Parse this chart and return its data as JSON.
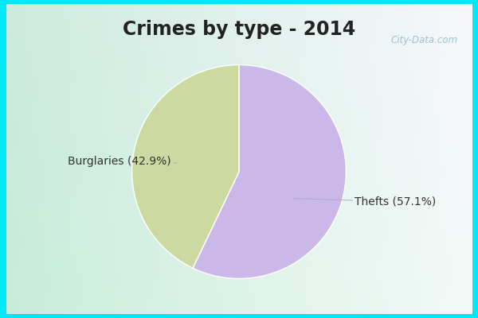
{
  "title": "Crimes by type - 2014",
  "slices": [
    {
      "label": "Thefts",
      "pct": 57.1,
      "color": "#c9b8e8"
    },
    {
      "label": "Burglaries",
      "pct": 42.9,
      "color": "#ccd9a0"
    }
  ],
  "bg_color_border": "#00e8f8",
  "bg_color_inner_tl": "#c8ede0",
  "bg_color_inner_tr": "#e8f5ee",
  "bg_color_inner_bl": "#d0eedf",
  "bg_color_inner_br": "#f0f8f4",
  "title_color": "#222222",
  "title_fontsize": 17,
  "label_fontsize": 10,
  "label_color": "#333333",
  "watermark": "City-Data.com",
  "border_thickness": 8
}
